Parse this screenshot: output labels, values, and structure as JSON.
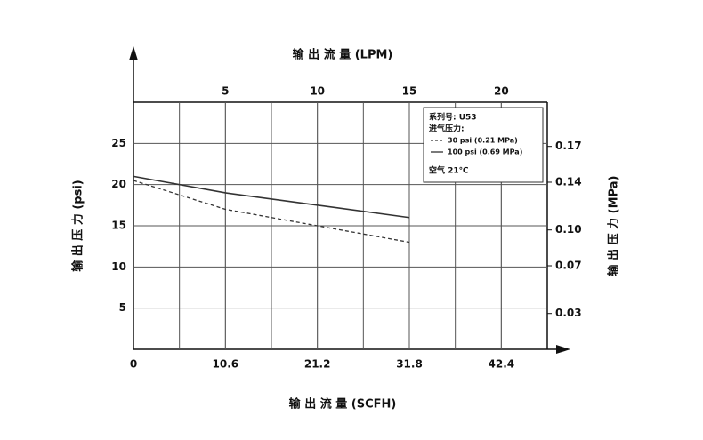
{
  "chart_data": {
    "type": "line",
    "title": "输 出 流 量 (LPM)",
    "x_label": "输 出 流 量 (SCFH)",
    "y_label": "输 出 压 力 (psi)",
    "y2_label": "输 出 压 力 (MPa)",
    "xlim": [
      0,
      47.7
    ],
    "xticks": [
      0,
      10.6,
      21.2,
      31.8,
      42.4
    ],
    "x2lim": [
      0,
      22.5
    ],
    "x2ticks": [
      5,
      10,
      15,
      20
    ],
    "ylim": [
      0,
      30
    ],
    "yticks": [
      5,
      10,
      15,
      20,
      25
    ],
    "y2lim": [
      0,
      0.207
    ],
    "y2ticks": [
      0.03,
      0.07,
      {
        "value": 0.1,
        "label": "0.10"
      },
      0.14,
      0.17
    ],
    "legend_title": [
      "系列号: U53",
      "进气压力:"
    ],
    "note": "空气 21℃",
    "grid": true,
    "series": [
      {
        "name": "30 psi (0.21 MPa)",
        "color": "#333333",
        "dash": true,
        "x": [
          0,
          10.6,
          21.2,
          31.8
        ],
        "values": [
          20.5,
          17,
          15,
          13
        ]
      },
      {
        "name": "100 psi (0.69 MPa)",
        "color": "#333333",
        "dash": false,
        "x": [
          0,
          10.6,
          21.2,
          31.8
        ],
        "values": [
          21,
          19,
          17.5,
          16
        ]
      }
    ]
  }
}
